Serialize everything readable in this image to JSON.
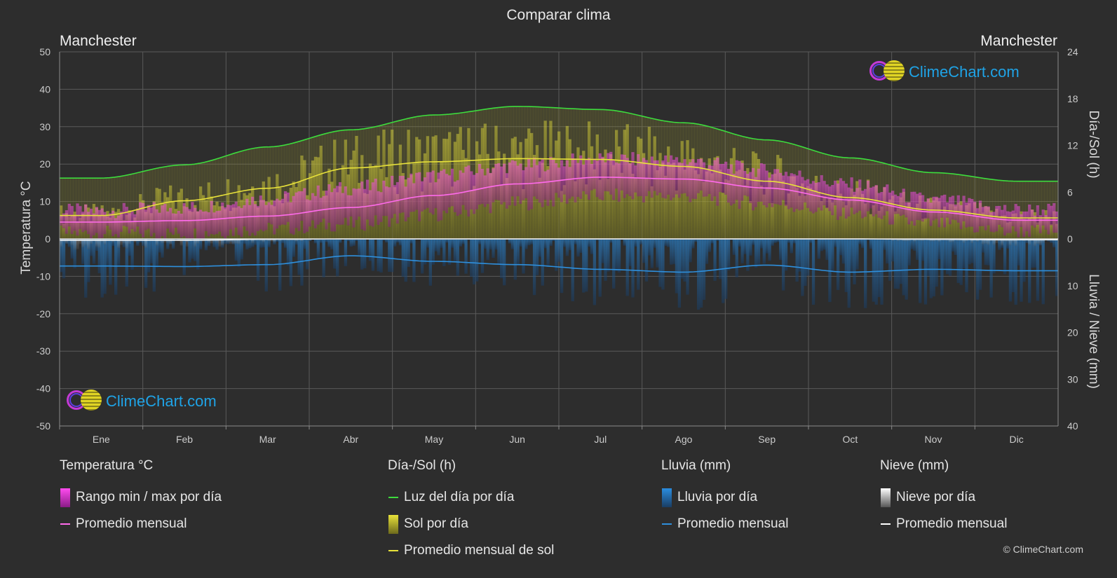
{
  "title": "Comparar clima",
  "city_left": "Manchester",
  "city_right": "Manchester",
  "axis": {
    "left_title": "Temperatura °C",
    "right_title_top": "Día-/Sol (h)",
    "right_title_bottom": "Lluvia / Nieve (mm)"
  },
  "watermark": "ClimeChart.com",
  "copyright": "© ClimeChart.com",
  "colors": {
    "background": "#2d2d2d",
    "daylight": "#3ddc3d",
    "sun_avg": "#e8e23a",
    "sun_bar": "#b8b43a",
    "temp_avg": "#ff6bec",
    "temp_range": "#e24bd3",
    "rain_avg": "#2e8fdc",
    "rain_bar": "#2a78c2",
    "snow_avg": "#ffffff",
    "grid": "#5a5a5a"
  },
  "legend": {
    "temperature": {
      "title": "Temperatura °C",
      "items": [
        {
          "label": "Rango min / max por día",
          "icon": "range-swatch"
        },
        {
          "label": "Promedio mensual",
          "icon": "line"
        }
      ]
    },
    "sun": {
      "title": "Día-/Sol (h)",
      "items": [
        {
          "label": "Luz del día por día",
          "icon": "line"
        },
        {
          "label": "Sol por día",
          "icon": "sun-swatch"
        },
        {
          "label": "Promedio mensual de sol",
          "icon": "line"
        }
      ]
    },
    "rain": {
      "title": "Lluvia (mm)",
      "items": [
        {
          "label": "Lluvia por día",
          "icon": "rain-swatch"
        },
        {
          "label": "Promedio mensual",
          "icon": "line"
        }
      ]
    },
    "snow": {
      "title": "Nieve (mm)",
      "items": [
        {
          "label": "Nieve por día",
          "icon": "snow-swatch"
        },
        {
          "label": "Promedio mensual",
          "icon": "line"
        }
      ]
    }
  },
  "chart_data": {
    "type": "area",
    "categories": [
      "Ene",
      "Feb",
      "Mar",
      "Abr",
      "May",
      "Jun",
      "Jul",
      "Ago",
      "Sep",
      "Oct",
      "Nov",
      "Dic"
    ],
    "left_axis": {
      "ylim": [
        -50,
        50
      ],
      "ticks": [
        "50",
        "40",
        "30",
        "20",
        "10",
        "0",
        "-10",
        "-20",
        "-30",
        "-40",
        "-50"
      ]
    },
    "right_axis_sun": {
      "ylim": [
        0,
        24
      ],
      "ticks": [
        "24",
        "18",
        "12",
        "6",
        "0"
      ]
    },
    "right_axis_rain": {
      "ylim": [
        0,
        40
      ],
      "ticks": [
        "0",
        "10",
        "20",
        "30",
        "40"
      ]
    },
    "series": [
      {
        "name": "Luz del día por día",
        "unit": "h",
        "values": [
          7.8,
          9.5,
          11.8,
          14.0,
          15.9,
          17.0,
          16.6,
          14.9,
          12.7,
          10.4,
          8.5,
          7.4
        ]
      },
      {
        "name": "Promedio mensual de sol",
        "unit": "h",
        "values": [
          3.0,
          4.9,
          6.5,
          9.1,
          9.9,
          10.3,
          10.2,
          9.3,
          7.4,
          5.3,
          3.7,
          2.7
        ]
      },
      {
        "name": "Promedio mensual",
        "group": "Temperatura °C",
        "unit": "°C",
        "values": [
          4.5,
          4.9,
          6.1,
          8.4,
          11.6,
          14.7,
          16.5,
          16.0,
          13.6,
          10.4,
          7.2,
          5.0
        ]
      },
      {
        "name": "Temperatura máx por día",
        "unit": "°C",
        "values": [
          7.5,
          8.3,
          10.7,
          13.5,
          16.8,
          19.6,
          21.4,
          20.9,
          18.3,
          14.5,
          10.4,
          7.8
        ]
      },
      {
        "name": "Temperatura mín por día",
        "unit": "°C",
        "values": [
          1.6,
          1.5,
          2.6,
          4.0,
          6.6,
          9.5,
          11.5,
          11.4,
          9.4,
          6.8,
          3.9,
          2.0
        ]
      },
      {
        "name": "Promedio mensual",
        "group": "Lluvia (mm)",
        "unit": "mm",
        "values": [
          5.8,
          5.9,
          5.5,
          3.6,
          4.8,
          5.5,
          6.5,
          7.1,
          5.6,
          7.1,
          6.5,
          6.8
        ]
      },
      {
        "name": "Promedio mensual",
        "group": "Nieve (mm)",
        "unit": "mm",
        "values": [
          0.3,
          0.3,
          0.1,
          0,
          0,
          0,
          0,
          0,
          0,
          0,
          0.1,
          0.2
        ]
      }
    ]
  }
}
